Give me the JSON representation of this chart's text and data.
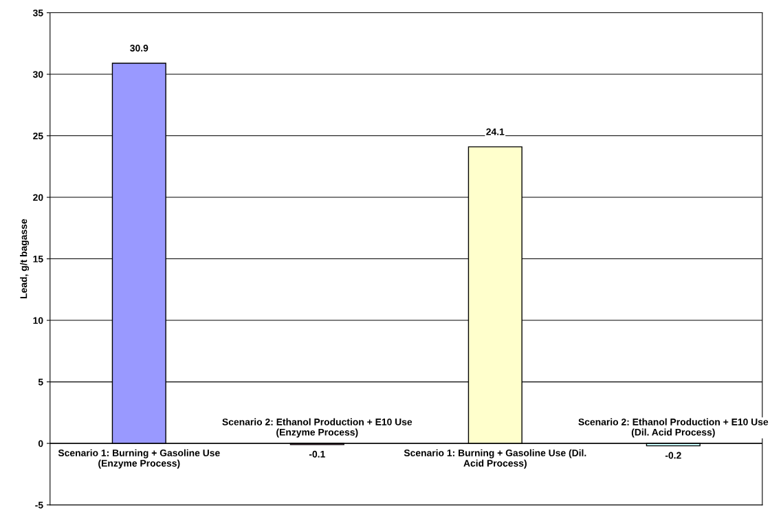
{
  "chart_data": {
    "type": "bar",
    "ylabel": "Lead, g/t bagasse",
    "categories": [
      "Scenario 1: Burning + Gasoline Use (Enzyme Process)",
      "Scenario 2: Ethanol Production + E10 Use (Enzyme Process)",
      "Scenario 1: Burning + Gasoline Use (Dil. Acid Process)",
      "Scenario 2: Ethanol Production + E10 Use (Dil. Acid Process)"
    ],
    "values": [
      30.9,
      -0.1,
      24.1,
      -0.2
    ],
    "colors": [
      "#9999ff",
      "#993366",
      "#ffffcc",
      "#ccffff"
    ],
    "ylim": [
      -5,
      35
    ],
    "yticks": [
      -5,
      0,
      5,
      10,
      15,
      20,
      25,
      30,
      35
    ],
    "grid": "y",
    "data_labels": true
  }
}
